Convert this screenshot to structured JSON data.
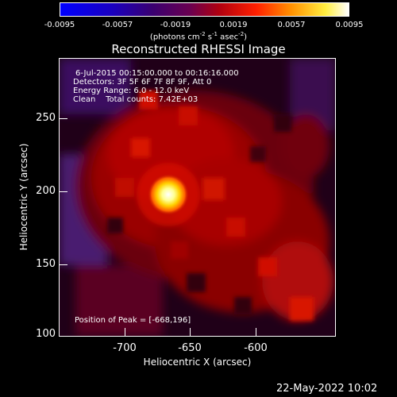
{
  "colorbar": {
    "ticks": [
      "-0.0095",
      "-0.0057",
      "-0.0019",
      "0.0019",
      "0.0057",
      "0.0095"
    ],
    "units_main": "(photons cm",
    "units_exp1": "-2",
    "units_mid": " s",
    "units_exp2": "-1",
    "units_mid2": " asec",
    "units_exp3": "-2",
    "units_end": ")"
  },
  "title": "Reconstructed RHESSI Image",
  "info": {
    "time_range": "6-Jul-2015 00:15:00.000 to 00:16:16.000",
    "detectors": "Detectors: 3F 5F 6F 7F 8F 9F, Att 0",
    "energy": "Energy Range: 6.0 - 12.0 keV",
    "clean": "Clean    Total counts: 7.42E+03"
  },
  "peak": "Position of Peak = [-668,196]",
  "axes": {
    "xlabel": "Heliocentric X (arcsec)",
    "ylabel": "Heliocentric Y (arcsec)",
    "xticks": [
      "-700",
      "-650",
      "-600"
    ],
    "yticks": [
      "250",
      "200",
      "150",
      "100"
    ]
  },
  "date": "22-May-2022 10:02",
  "colors": {
    "background": "#000000",
    "foreground": "#ffffff"
  }
}
